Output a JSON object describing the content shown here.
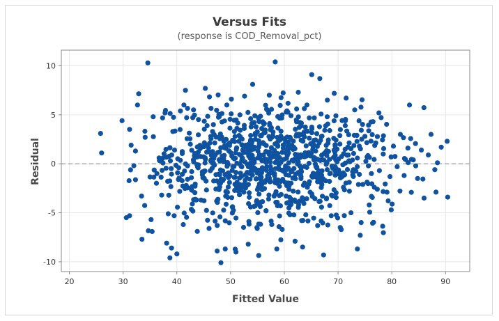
{
  "chart_data": {
    "type": "scatter",
    "title": "Versus Fits",
    "subtitle": "(response is COD_Removal_pct)",
    "xlabel": "Fitted Value",
    "ylabel": "Residual",
    "xlim": [
      18.5,
      94.5
    ],
    "ylim": [
      -11.0,
      11.6
    ],
    "xticks": [
      20,
      30,
      40,
      50,
      60,
      70,
      80,
      90
    ],
    "yticks": [
      -10,
      -5,
      0,
      5,
      10
    ],
    "grid": true,
    "reference_line_y": 0,
    "marker_color": "#0e52a0",
    "reference_color": "#9a9a9a",
    "points": [
      [
        25.8,
        3.1
      ],
      [
        26.0,
        1.1
      ],
      [
        29.8,
        4.4
      ],
      [
        30.6,
        -5.5
      ],
      [
        31.2,
        -5.3
      ],
      [
        31.5,
        1.9
      ],
      [
        32.0,
        -0.2
      ],
      [
        32.3,
        1.3
      ],
      [
        33.5,
        -7.7
      ],
      [
        34.1,
        2.7
      ],
      [
        34.6,
        10.3
      ],
      [
        35.2,
        -5.7
      ],
      [
        35.6,
        4.8
      ],
      [
        36.3,
        -1.0
      ],
      [
        36.7,
        0.6
      ],
      [
        37.8,
        5.2
      ],
      [
        38.1,
        -8.1
      ],
      [
        38.4,
        -5.1
      ],
      [
        38.7,
        -9.6
      ],
      [
        39.0,
        -8.6
      ],
      [
        39.5,
        -5.3
      ],
      [
        40.0,
        -9.2
      ],
      [
        40.3,
        -1.6
      ],
      [
        40.6,
        3.5
      ],
      [
        41.6,
        7.5
      ],
      [
        41.2,
        -6.2
      ],
      [
        42.5,
        2.0
      ],
      [
        43.1,
        5.5
      ],
      [
        43.8,
        -6.9
      ],
      [
        44.5,
        -3.7
      ],
      [
        45.3,
        7.7
      ],
      [
        46.0,
        -6.6
      ],
      [
        46.8,
        4.0
      ],
      [
        47.5,
        -8.9
      ],
      [
        48.2,
        -10.1
      ],
      [
        49.0,
        -8.7
      ],
      [
        49.3,
        6.0
      ],
      [
        50.1,
        5.1
      ],
      [
        51.0,
        -9.0
      ],
      [
        51.7,
        0.0
      ],
      [
        52.6,
        6.9
      ],
      [
        53.4,
        -5.9
      ],
      [
        54.1,
        8.1
      ],
      [
        54.9,
        -6.5
      ],
      [
        55.8,
        3.6
      ],
      [
        56.6,
        -4.8
      ],
      [
        57.2,
        7.0
      ],
      [
        58.3,
        10.4
      ],
      [
        58.6,
        -8.7
      ],
      [
        59.6,
        -6.7
      ],
      [
        60.5,
        5.4
      ],
      [
        61.2,
        -3.7
      ],
      [
        62.0,
        -7.9
      ],
      [
        62.6,
        7.3
      ],
      [
        63.4,
        -8.5
      ],
      [
        64.2,
        6.0
      ],
      [
        65.1,
        9.1
      ],
      [
        66.2,
        -6.3
      ],
      [
        66.6,
        8.7
      ],
      [
        67.3,
        -9.3
      ],
      [
        68.0,
        6.5
      ],
      [
        68.8,
        -3.2
      ],
      [
        69.6,
        4.9
      ],
      [
        70.4,
        -6.5
      ],
      [
        71.5,
        6.7
      ],
      [
        72.4,
        -5.0
      ],
      [
        73.1,
        5.5
      ],
      [
        73.6,
        -8.7
      ],
      [
        74.3,
        -6.0
      ],
      [
        75.0,
        2.8
      ],
      [
        75.8,
        -4.2
      ],
      [
        76.5,
        4.3
      ],
      [
        77.3,
        -2.6
      ],
      [
        77.6,
        5.2
      ],
      [
        78.4,
        1.0
      ],
      [
        79.1,
        -2.9
      ],
      [
        79.9,
        -4.7
      ],
      [
        80.3,
        1.8
      ],
      [
        81.0,
        -0.3
      ],
      [
        81.6,
        3.0
      ],
      [
        82.3,
        -1.2
      ],
      [
        83.0,
        1.6
      ],
      [
        83.3,
        6.0
      ],
      [
        84.0,
        0.4
      ],
      [
        84.8,
        -1.5
      ],
      [
        85.5,
        1.4
      ],
      [
        86.0,
        -3.5
      ],
      [
        86.8,
        0.9
      ],
      [
        87.3,
        3.0
      ],
      [
        88.0,
        -0.6
      ],
      [
        88.5,
        0.1
      ],
      [
        89.2,
        1.7
      ],
      [
        90.3,
        2.3
      ],
      [
        90.4,
        -3.4
      ],
      [
        44.0,
        1.2
      ],
      [
        45.1,
        -1.5
      ],
      [
        46.3,
        2.8
      ],
      [
        47.9,
        -2.0
      ],
      [
        48.6,
        0.7
      ],
      [
        49.8,
        -1.9
      ],
      [
        50.7,
        3.3
      ],
      [
        51.9,
        -2.7
      ],
      [
        52.8,
        1.9
      ],
      [
        53.7,
        -0.8
      ],
      [
        54.6,
        2.5
      ],
      [
        55.3,
        -3.1
      ],
      [
        56.1,
        0.9
      ],
      [
        56.9,
        -1.4
      ],
      [
        57.7,
        2.7
      ],
      [
        58.9,
        -0.5
      ],
      [
        59.8,
        1.6
      ],
      [
        60.9,
        -2.2
      ],
      [
        61.7,
        0.3
      ],
      [
        62.3,
        3.0
      ],
      [
        63.1,
        -1.3
      ],
      [
        63.9,
        1.0
      ],
      [
        64.8,
        -2.9
      ],
      [
        65.5,
        2.4
      ],
      [
        66.0,
        -0.4
      ],
      [
        67.7,
        1.2
      ],
      [
        68.4,
        -1.8
      ],
      [
        69.2,
        2.6
      ],
      [
        70.1,
        0.5
      ],
      [
        71.0,
        -2.4
      ],
      [
        71.8,
        1.7
      ],
      [
        72.7,
        -0.8
      ],
      [
        73.5,
        2.9
      ],
      [
        74.6,
        -2.1
      ],
      [
        75.4,
        0.7
      ],
      [
        76.2,
        -1.0
      ]
    ]
  }
}
